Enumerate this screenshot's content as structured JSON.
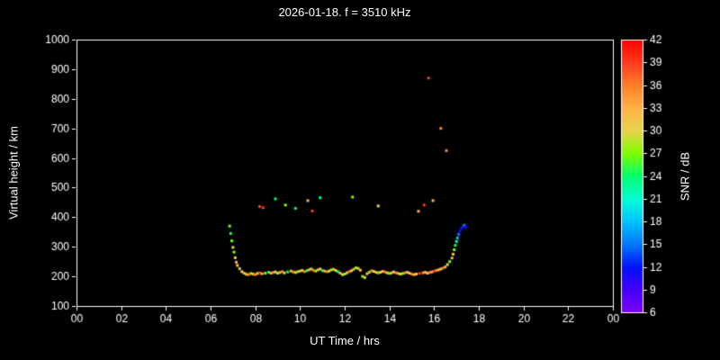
{
  "chart_data": {
    "type": "scatter",
    "title": "2026-01-18. f = 3510 kHz",
    "xlabel": "UT Time / hrs",
    "ylabel": "Virtual height / km",
    "xlim": [
      0,
      24
    ],
    "ylim": [
      100,
      1000
    ],
    "grid": false,
    "x_ticks": [
      [
        0,
        "00"
      ],
      [
        2,
        "02"
      ],
      [
        4,
        "04"
      ],
      [
        6,
        "06"
      ],
      [
        8,
        "08"
      ],
      [
        10,
        "10"
      ],
      [
        12,
        "12"
      ],
      [
        14,
        "14"
      ],
      [
        16,
        "16"
      ],
      [
        18,
        "18"
      ],
      [
        20,
        "20"
      ],
      [
        22,
        "22"
      ],
      [
        24,
        "00"
      ]
    ],
    "y_ticks": [
      100,
      200,
      300,
      400,
      500,
      600,
      700,
      800,
      900,
      1000
    ],
    "colorbar": {
      "label": "SNR / dB",
      "min": 6,
      "max": 42,
      "ticks": [
        6,
        9,
        12,
        15,
        18,
        21,
        24,
        27,
        30,
        33,
        36,
        39,
        42
      ],
      "stops": [
        {
          "v": 6,
          "c": "#7d00ff"
        },
        {
          "v": 9,
          "c": "#4400ff"
        },
        {
          "v": 12,
          "c": "#0011ff"
        },
        {
          "v": 15,
          "c": "#0077ff"
        },
        {
          "v": 18,
          "c": "#00c3ff"
        },
        {
          "v": 21,
          "c": "#00ffd5"
        },
        {
          "v": 24,
          "c": "#00ff6e"
        },
        {
          "v": 27,
          "c": "#7dff00"
        },
        {
          "v": 30,
          "c": "#e8d44c"
        },
        {
          "v": 33,
          "c": "#ffb347"
        },
        {
          "v": 36,
          "c": "#ff7f2a"
        },
        {
          "v": 39,
          "c": "#ff3c1e"
        },
        {
          "v": 42,
          "c": "#ff0000"
        }
      ]
    },
    "points": [
      [
        6.85,
        370,
        27
      ],
      [
        6.9,
        345,
        24
      ],
      [
        6.95,
        320,
        27
      ],
      [
        7.0,
        298,
        30
      ],
      [
        7.05,
        282,
        27
      ],
      [
        7.1,
        263,
        30
      ],
      [
        7.15,
        248,
        33
      ],
      [
        7.2,
        237,
        30
      ],
      [
        7.3,
        226,
        33
      ],
      [
        7.4,
        216,
        30
      ],
      [
        7.5,
        211,
        33
      ],
      [
        7.6,
        207,
        30
      ],
      [
        7.7,
        206,
        36
      ],
      [
        7.8,
        210,
        27
      ],
      [
        7.9,
        208,
        33
      ],
      [
        8.0,
        206,
        36
      ],
      [
        8.1,
        210,
        30
      ],
      [
        8.2,
        212,
        39
      ],
      [
        8.3,
        209,
        33
      ],
      [
        8.45,
        211,
        27
      ],
      [
        8.6,
        214,
        24
      ],
      [
        8.7,
        211,
        33
      ],
      [
        8.8,
        213,
        36
      ],
      [
        8.9,
        215,
        30
      ],
      [
        9.0,
        211,
        27
      ],
      [
        9.1,
        213,
        33
      ],
      [
        9.2,
        216,
        36
      ],
      [
        9.3,
        212,
        30
      ],
      [
        9.45,
        215,
        24
      ],
      [
        9.6,
        218,
        33
      ],
      [
        9.7,
        215,
        36
      ],
      [
        9.8,
        213,
        30
      ],
      [
        9.9,
        216,
        27
      ],
      [
        10.0,
        218,
        33
      ],
      [
        10.1,
        220,
        30
      ],
      [
        10.2,
        216,
        36
      ],
      [
        10.3,
        219,
        24
      ],
      [
        10.4,
        222,
        33
      ],
      [
        10.5,
        225,
        30
      ],
      [
        10.6,
        221,
        36
      ],
      [
        10.7,
        218,
        27
      ],
      [
        10.8,
        222,
        33
      ],
      [
        10.9,
        225,
        30
      ],
      [
        11.0,
        220,
        24
      ],
      [
        11.1,
        218,
        33
      ],
      [
        11.2,
        216,
        36
      ],
      [
        11.3,
        218,
        30
      ],
      [
        11.4,
        222,
        27
      ],
      [
        11.5,
        224,
        33
      ],
      [
        11.6,
        220,
        30
      ],
      [
        11.7,
        216,
        24
      ],
      [
        11.8,
        211,
        33
      ],
      [
        11.9,
        206,
        30
      ],
      [
        12.0,
        208,
        27
      ],
      [
        12.1,
        212,
        33
      ],
      [
        12.2,
        216,
        36
      ],
      [
        12.3,
        219,
        30
      ],
      [
        12.4,
        224,
        33
      ],
      [
        12.5,
        229,
        27
      ],
      [
        12.6,
        227,
        30
      ],
      [
        12.7,
        221,
        33
      ],
      [
        12.8,
        200,
        27
      ],
      [
        12.9,
        196,
        30
      ],
      [
        13.0,
        209,
        33
      ],
      [
        13.1,
        214,
        27
      ],
      [
        13.2,
        219,
        36
      ],
      [
        13.3,
        217,
        30
      ],
      [
        13.4,
        214,
        33
      ],
      [
        13.5,
        212,
        27
      ],
      [
        13.6,
        214,
        30
      ],
      [
        13.7,
        217,
        33
      ],
      [
        13.8,
        215,
        36
      ],
      [
        13.9,
        212,
        30
      ],
      [
        14.0,
        210,
        27
      ],
      [
        14.1,
        212,
        33
      ],
      [
        14.2,
        215,
        30
      ],
      [
        14.3,
        212,
        36
      ],
      [
        14.4,
        210,
        33
      ],
      [
        14.5,
        208,
        30
      ],
      [
        14.6,
        210,
        27
      ],
      [
        14.7,
        212,
        36
      ],
      [
        14.8,
        214,
        33
      ],
      [
        14.9,
        211,
        30
      ],
      [
        15.0,
        208,
        36
      ],
      [
        15.1,
        206,
        33
      ],
      [
        15.2,
        208,
        30
      ],
      [
        15.35,
        210,
        39
      ],
      [
        15.5,
        212,
        36
      ],
      [
        15.6,
        214,
        33
      ],
      [
        15.7,
        211,
        30
      ],
      [
        15.8,
        213,
        36
      ],
      [
        15.9,
        215,
        33
      ],
      [
        16.0,
        218,
        39
      ],
      [
        16.1,
        220,
        36
      ],
      [
        16.2,
        222,
        33
      ],
      [
        16.3,
        225,
        30
      ],
      [
        16.4,
        228,
        36
      ],
      [
        16.5,
        232,
        33
      ],
      [
        16.6,
        240,
        30
      ],
      [
        16.7,
        250,
        27
      ],
      [
        16.8,
        262,
        33
      ],
      [
        16.85,
        275,
        30
      ],
      [
        16.9,
        290,
        27
      ],
      [
        16.95,
        305,
        24
      ],
      [
        17.0,
        318,
        21
      ],
      [
        17.05,
        330,
        18
      ],
      [
        17.1,
        342,
        15
      ],
      [
        17.15,
        352,
        12
      ],
      [
        17.2,
        361,
        12
      ],
      [
        17.3,
        368,
        9
      ],
      [
        17.35,
        373,
        15
      ],
      [
        17.4,
        366,
        12
      ],
      [
        8.2,
        436,
        39
      ],
      [
        8.35,
        432,
        39
      ],
      [
        8.9,
        462,
        24
      ],
      [
        9.35,
        441,
        27
      ],
      [
        9.8,
        430,
        24
      ],
      [
        10.35,
        456,
        33
      ],
      [
        10.55,
        421,
        39
      ],
      [
        10.9,
        466,
        24
      ],
      [
        12.35,
        468,
        27
      ],
      [
        13.5,
        438,
        30
      ],
      [
        15.3,
        420,
        33
      ],
      [
        15.55,
        441,
        39
      ],
      [
        15.95,
        456,
        33
      ],
      [
        15.75,
        870,
        39
      ],
      [
        16.3,
        700,
        36
      ],
      [
        16.55,
        625,
        36
      ]
    ]
  }
}
